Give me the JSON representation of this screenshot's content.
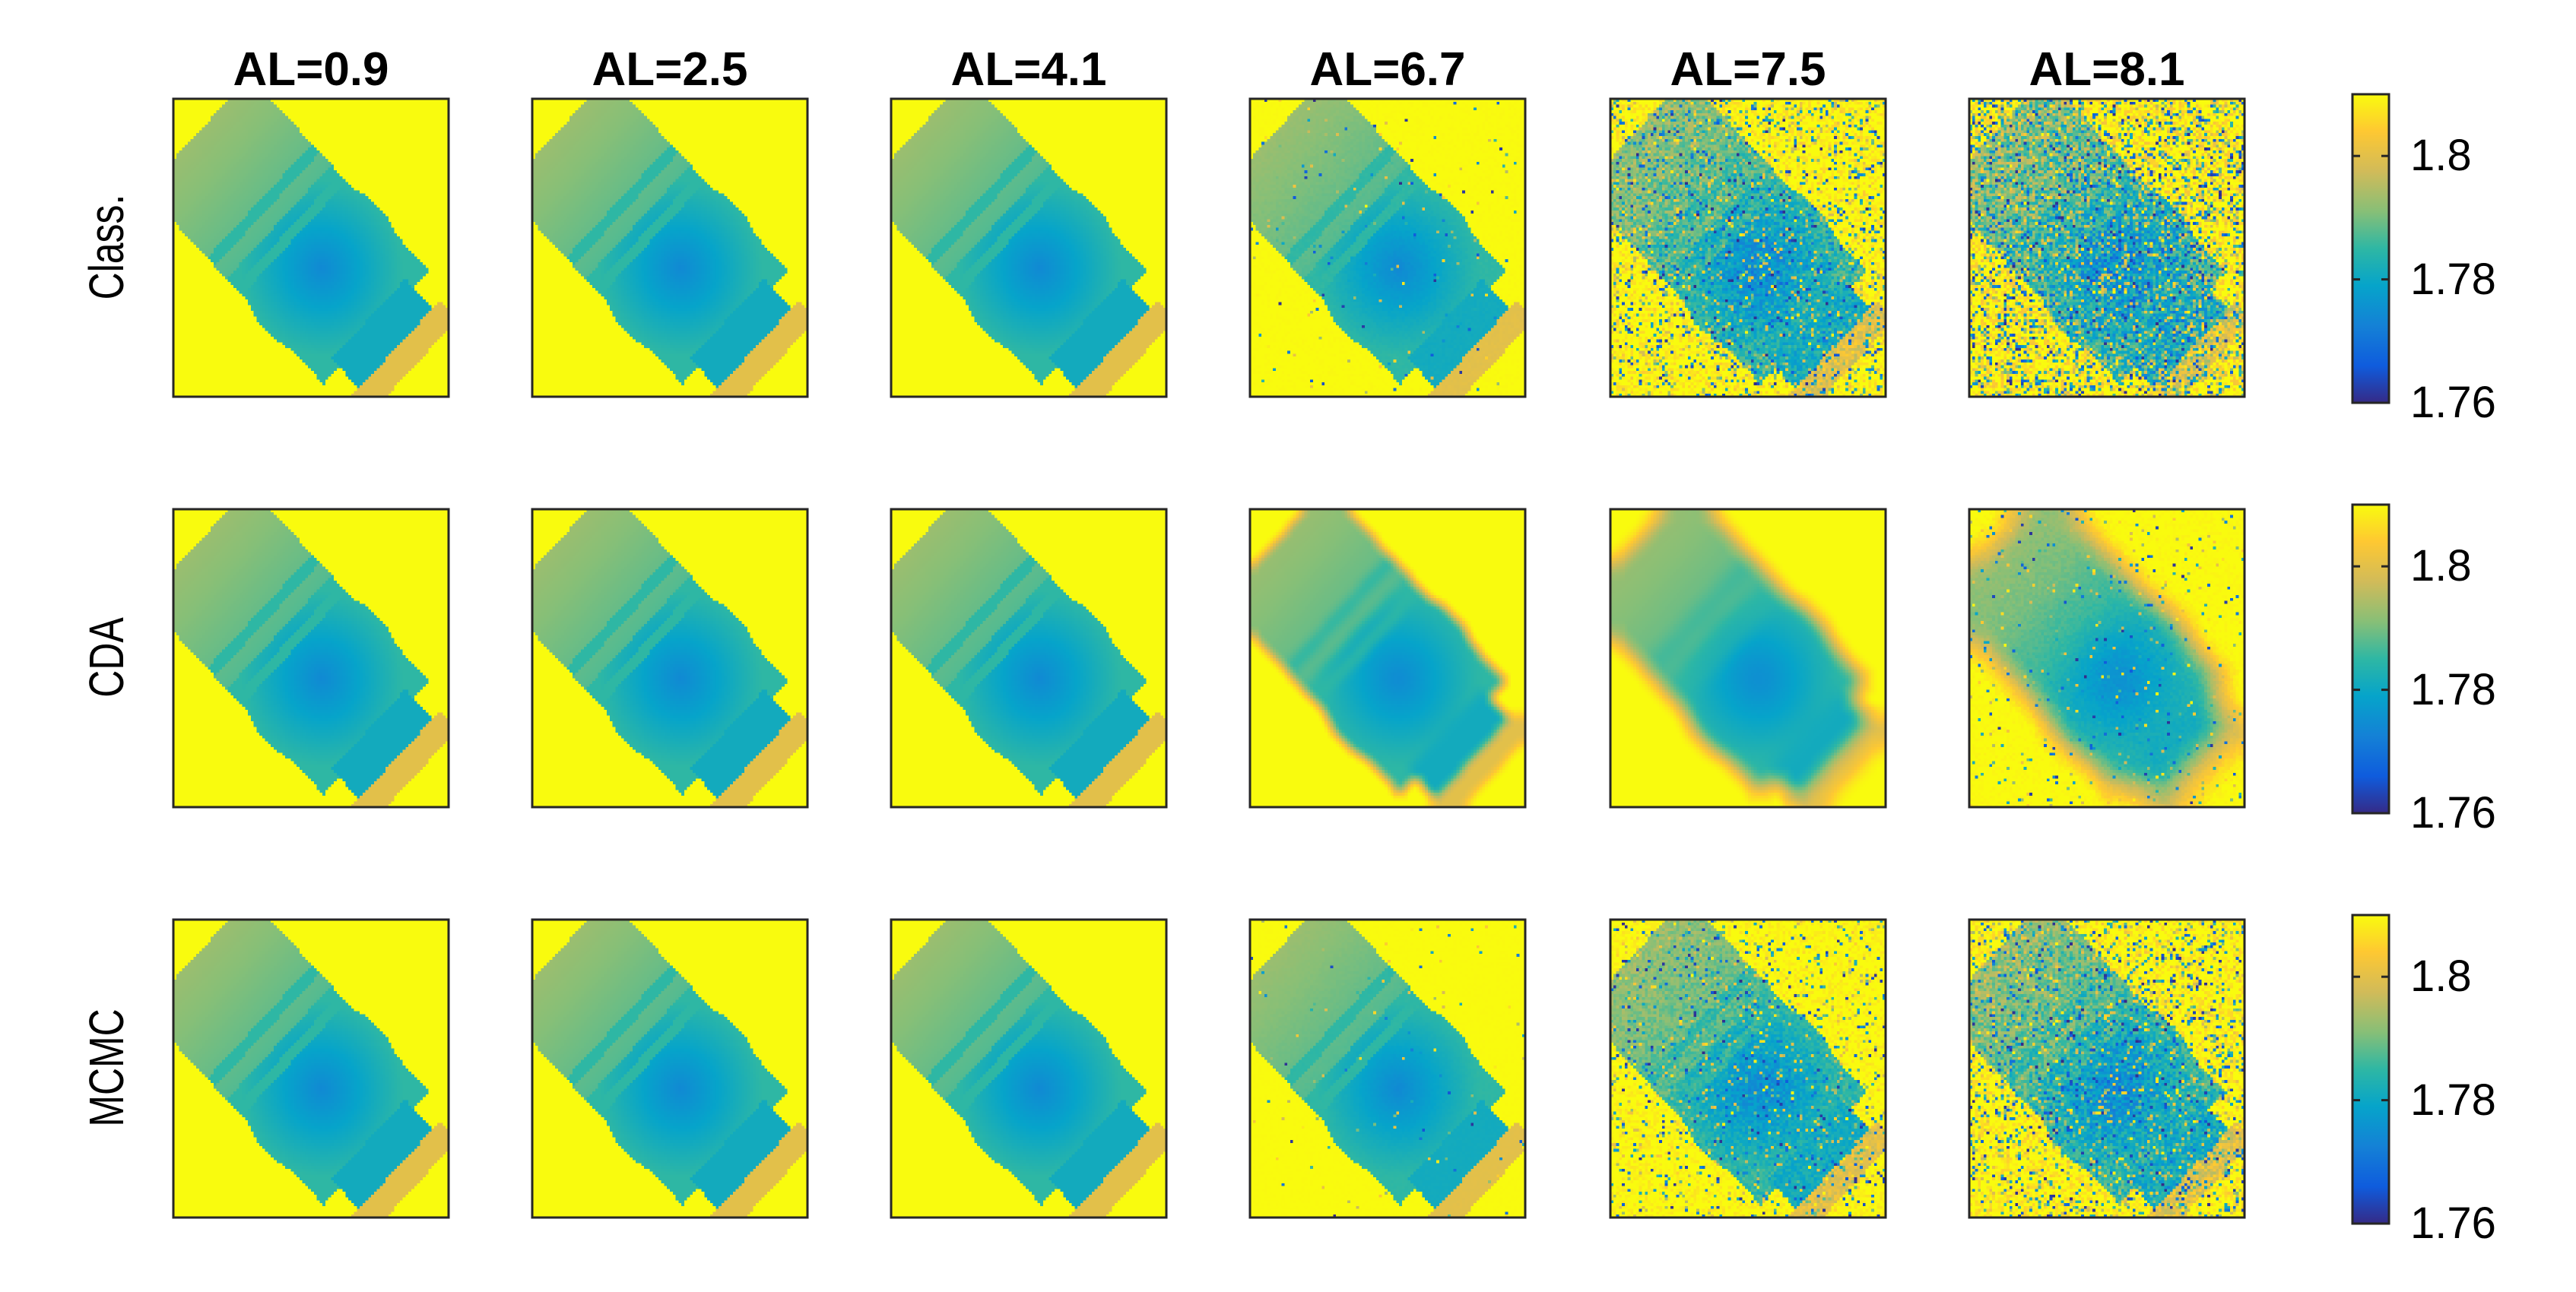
{
  "chart_data": {
    "type": "heatmap",
    "columns": [
      "AL=0.9",
      "AL=2.5",
      "AL=4.1",
      "AL=6.7",
      "AL=7.5",
      "AL=8.1"
    ],
    "rows": [
      "Class.",
      "CDA",
      "MCMC"
    ],
    "colorbar": {
      "ticks": [
        "1.8",
        "1.78",
        "1.76"
      ],
      "tick_values": [
        1.8,
        1.78,
        1.76
      ],
      "range": [
        1.76,
        1.81
      ],
      "colormap": "parula"
    },
    "noise_levels": [
      [
        0.0,
        0.0,
        0.0,
        0.05,
        0.55,
        0.9
      ],
      [
        0.0,
        0.0,
        0.0,
        0.0,
        0.0,
        0.12
      ],
      [
        0.0,
        0.0,
        0.0,
        0.03,
        0.35,
        0.6
      ]
    ],
    "blur_levels": [
      [
        0,
        0,
        0,
        0,
        0,
        0
      ],
      [
        0,
        0,
        0,
        1,
        2,
        3
      ],
      [
        0,
        0,
        0,
        0,
        0,
        0
      ]
    ]
  }
}
